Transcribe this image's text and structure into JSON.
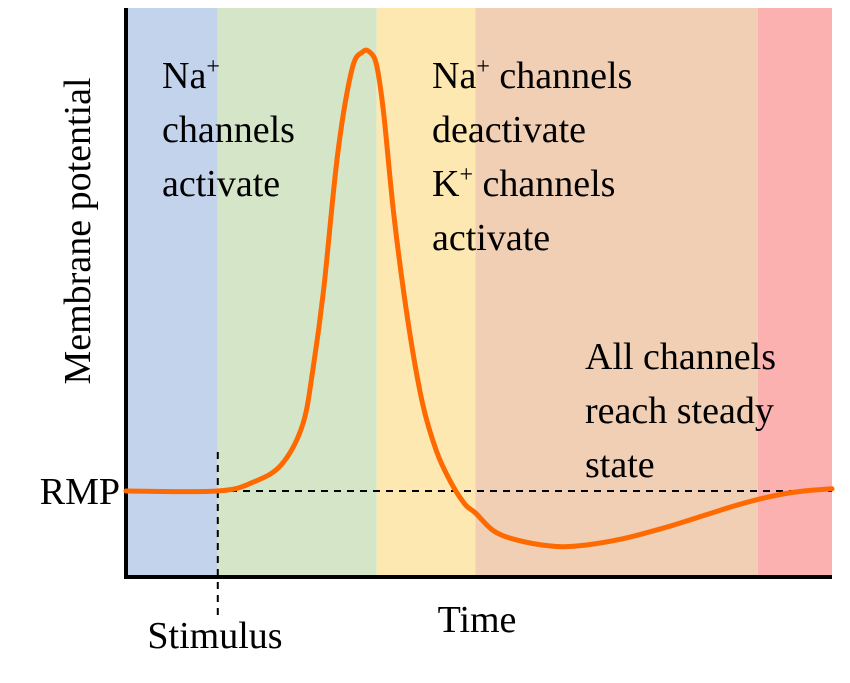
{
  "chart_data": {
    "type": "line",
    "xlabel": "Time",
    "ylabel": "Membrane potential",
    "y_reference": {
      "label": "RMP",
      "value": 0,
      "style": "dashed"
    },
    "x_marker": {
      "label": "Stimulus",
      "x": 0.13,
      "style": "dashed"
    },
    "grid": false,
    "legend": "none",
    "xlim": [
      0,
      1
    ],
    "ylim": [
      -0.15,
      1.05
    ],
    "bands": [
      {
        "x0": 0.0,
        "x1": 0.13,
        "color": "#c3d3ec"
      },
      {
        "x0": 0.13,
        "x1": 0.355,
        "color": "#d5e6c8"
      },
      {
        "x0": 0.355,
        "x1": 0.495,
        "color": "#fde8b1"
      },
      {
        "x0": 0.495,
        "x1": 0.895,
        "color": "#f0cfb4"
      },
      {
        "x0": 0.895,
        "x1": 1.0,
        "color": "#fcb1b1"
      }
    ],
    "series": [
      {
        "color": "#ff6a00",
        "x": [
          0.0,
          0.13,
          0.18,
          0.22,
          0.25,
          0.265,
          0.28,
          0.3,
          0.32,
          0.335,
          0.345,
          0.355,
          0.365,
          0.38,
          0.4,
          0.42,
          0.44,
          0.46,
          0.48,
          0.495,
          0.52,
          0.55,
          0.6,
          0.64,
          0.7,
          0.76,
          0.82,
          0.87,
          0.92,
          0.96,
          1.0
        ],
        "y": [
          0.0,
          0.0,
          0.02,
          0.06,
          0.15,
          0.28,
          0.46,
          0.77,
          0.96,
          1.0,
          1.0,
          0.97,
          0.86,
          0.62,
          0.38,
          0.2,
          0.09,
          0.02,
          -0.03,
          -0.05,
          -0.09,
          -0.11,
          -0.125,
          -0.125,
          -0.11,
          -0.085,
          -0.055,
          -0.03,
          -0.01,
          0.0,
          0.005
        ]
      }
    ],
    "annotations": [
      {
        "main": "Na",
        "sup": "+"
      },
      {
        "main": "channels"
      },
      {
        "main": "activate"
      },
      {
        "main": "Na",
        "sup": "+",
        "rest": " channels"
      },
      {
        "main": "deactivate"
      },
      {
        "main": "K",
        "sup": "+",
        "rest": " channels"
      },
      {
        "main": "activate"
      },
      {
        "main": "All channels"
      },
      {
        "main": "reach steady"
      },
      {
        "main": "state"
      }
    ]
  }
}
